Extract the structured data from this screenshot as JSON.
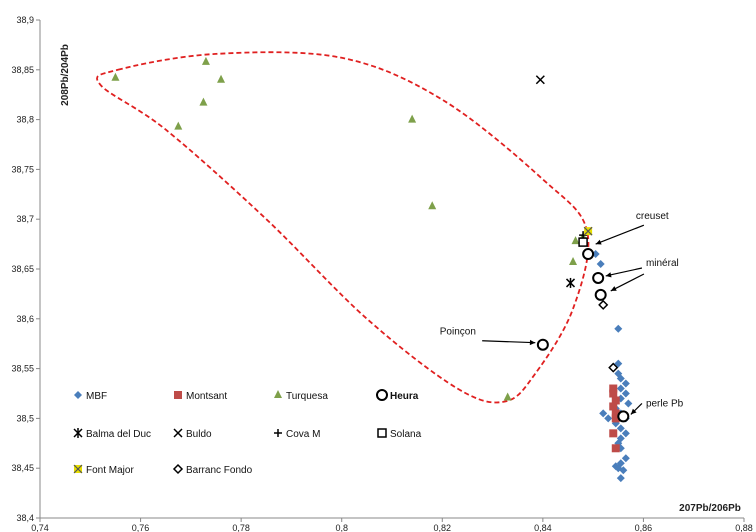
{
  "chart_data": {
    "type": "scatter",
    "xlabel": "207Pb/206Pb",
    "ylabel": "208Pb/204Pb",
    "xlim": [
      0.74,
      0.88
    ],
    "ylim": [
      38.4,
      38.9
    ],
    "x_ticks": [
      0.74,
      0.76,
      0.78,
      0.8,
      0.82,
      0.84,
      0.86,
      0.88
    ],
    "x_tick_labels": [
      "0,74",
      "0,76",
      "0,78",
      "0,8",
      "0,82",
      "0,84",
      "0,86",
      "0,88"
    ],
    "y_ticks": [
      38.4,
      38.45,
      38.5,
      38.55,
      38.6,
      38.65,
      38.7,
      38.75,
      38.8,
      38.85,
      38.9
    ],
    "y_tick_labels": [
      "38,4",
      "38,45",
      "38,5",
      "38,55",
      "38,6",
      "38,65",
      "38,7",
      "38,75",
      "38,8",
      "38,85",
      "38,9"
    ],
    "grid": false,
    "legend_position": "bottom-left",
    "series": [
      {
        "name": "MBF",
        "marker": "diamond",
        "color": "#4a7ebb",
        "bold": false,
        "points": [
          [
            0.8505,
            38.665
          ],
          [
            0.8515,
            38.655
          ],
          [
            0.855,
            38.59
          ],
          [
            0.855,
            38.555
          ],
          [
            0.855,
            38.545
          ],
          [
            0.8555,
            38.54
          ],
          [
            0.8565,
            38.535
          ],
          [
            0.8555,
            38.53
          ],
          [
            0.8565,
            38.525
          ],
          [
            0.8555,
            38.52
          ],
          [
            0.857,
            38.515
          ],
          [
            0.8545,
            38.51
          ],
          [
            0.8555,
            38.505
          ],
          [
            0.8565,
            38.5
          ],
          [
            0.852,
            38.505
          ],
          [
            0.853,
            38.5
          ],
          [
            0.8545,
            38.495
          ],
          [
            0.8555,
            38.49
          ],
          [
            0.8565,
            38.485
          ],
          [
            0.8555,
            38.48
          ],
          [
            0.855,
            38.475
          ],
          [
            0.8555,
            38.47
          ],
          [
            0.8565,
            38.46
          ],
          [
            0.8555,
            38.455
          ],
          [
            0.8545,
            38.452
          ],
          [
            0.855,
            38.45
          ],
          [
            0.856,
            38.448
          ],
          [
            0.8555,
            38.44
          ]
        ]
      },
      {
        "name": "Montsant",
        "marker": "square",
        "color": "#be4b48",
        "bold": false,
        "points": [
          [
            0.854,
            38.53
          ],
          [
            0.854,
            38.525
          ],
          [
            0.8545,
            38.518
          ],
          [
            0.854,
            38.512
          ],
          [
            0.8545,
            38.505
          ],
          [
            0.8545,
            38.5
          ],
          [
            0.854,
            38.485
          ],
          [
            0.8545,
            38.47
          ]
        ]
      },
      {
        "name": "Turquesa",
        "marker": "triangle",
        "color": "#7ea04a",
        "bold": false,
        "points": [
          [
            0.755,
            38.842
          ],
          [
            0.7675,
            38.793
          ],
          [
            0.7725,
            38.817
          ],
          [
            0.773,
            38.858
          ],
          [
            0.776,
            38.84
          ],
          [
            0.814,
            38.8
          ],
          [
            0.818,
            38.713
          ],
          [
            0.833,
            38.521
          ],
          [
            0.846,
            38.657
          ],
          [
            0.8465,
            38.678
          ],
          [
            0.848,
            38.682
          ]
        ]
      },
      {
        "name": "Heura",
        "marker": "circle",
        "color": "#000000",
        "bold": true,
        "points": [
          [
            0.849,
            38.665
          ],
          [
            0.851,
            38.641
          ],
          [
            0.8515,
            38.624
          ],
          [
            0.84,
            38.574
          ],
          [
            0.856,
            38.502
          ]
        ]
      },
      {
        "name": "Balma del Duc",
        "marker": "asterisk",
        "color": "#000000",
        "bold": false,
        "points": [
          [
            0.8455,
            38.636
          ]
        ]
      },
      {
        "name": "Buldo",
        "marker": "x",
        "color": "#000000",
        "bold": false,
        "points": [
          [
            0.8395,
            38.84
          ]
        ]
      },
      {
        "name": "Cova M",
        "marker": "plus",
        "color": "#000000",
        "bold": false,
        "points": [
          [
            0.848,
            38.684
          ]
        ]
      },
      {
        "name": "Solana",
        "marker": "open-square",
        "color": "#000000",
        "bold": false,
        "points": [
          [
            0.848,
            38.677
          ]
        ]
      },
      {
        "name": "Font Major",
        "marker": "x-yellow",
        "color": "#e8e000",
        "bold": false,
        "points": [
          [
            0.849,
            38.688
          ]
        ]
      },
      {
        "name": "Barranc Fondo",
        "marker": "open-diamond",
        "color": "#000000",
        "bold": false,
        "points": [
          [
            0.852,
            38.614
          ],
          [
            0.854,
            38.551
          ]
        ]
      }
    ],
    "annotations": [
      {
        "text": "creuset",
        "x": 0.8585,
        "y": 38.7,
        "arrow_to": [
          0.8505,
          38.675
        ]
      },
      {
        "text": "minéral",
        "x": 0.8605,
        "y": 38.653,
        "arrow_to": [
          0.8525,
          38.643
        ],
        "arrow2_to": [
          0.8535,
          38.628
        ]
      },
      {
        "text": "Poinçon",
        "x": 0.8195,
        "y": 38.584,
        "arrow_to": [
          0.8385,
          38.576
        ]
      },
      {
        "text": "perle Pb",
        "x": 0.8605,
        "y": 38.512,
        "arrow_to": [
          0.8575,
          38.504
        ]
      }
    ]
  }
}
